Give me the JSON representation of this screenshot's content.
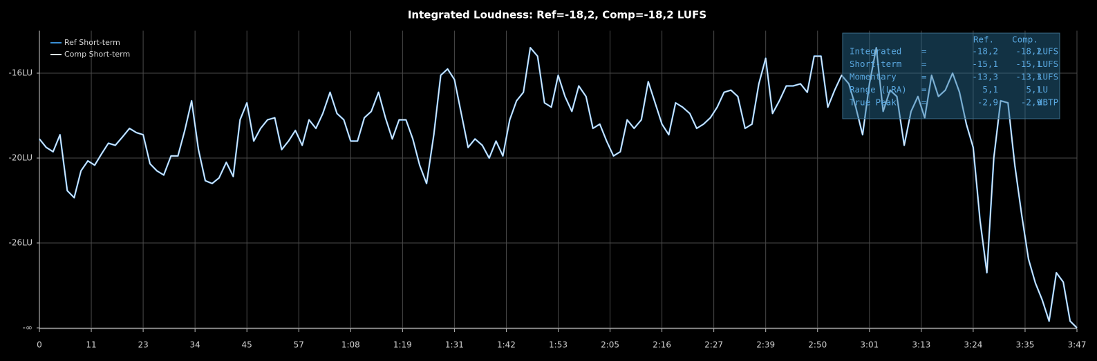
{
  "chart_data": {
    "type": "line",
    "title": "Integrated Loudness: Ref=-18,2, Comp=-18,2 LUFS",
    "xlim": [
      0,
      227
    ],
    "xticks": [
      {
        "value": 0,
        "label": "0"
      },
      {
        "value": 11.35,
        "label": "11"
      },
      {
        "value": 22.7,
        "label": "23"
      },
      {
        "value": 34.05,
        "label": "34"
      },
      {
        "value": 45.4,
        "label": "45"
      },
      {
        "value": 56.75,
        "label": "57"
      },
      {
        "value": 68.1,
        "label": "1:08"
      },
      {
        "value": 79.45,
        "label": "1:19"
      },
      {
        "value": 90.8,
        "label": "1:31"
      },
      {
        "value": 102.15,
        "label": "1:42"
      },
      {
        "value": 113.5,
        "label": "1:53"
      },
      {
        "value": 124.85,
        "label": "2:05"
      },
      {
        "value": 136.2,
        "label": "2:16"
      },
      {
        "value": 147.55,
        "label": "2:27"
      },
      {
        "value": 158.9,
        "label": "2:39"
      },
      {
        "value": 170.25,
        "label": "2:50"
      },
      {
        "value": 181.6,
        "label": "3:01"
      },
      {
        "value": 192.95,
        "label": "3:13"
      },
      {
        "value": 204.3,
        "label": "3:24"
      },
      {
        "value": 215.65,
        "label": "3:35"
      },
      {
        "value": 227,
        "label": "3:47"
      }
    ],
    "ylim": [
      -36,
      -14
    ],
    "yticks": [
      {
        "value": -16,
        "label": "-16LU"
      },
      {
        "value": -20,
        "label": "-20LU"
      },
      {
        "value": -26,
        "label": "-26LU"
      },
      {
        "value": -36,
        "label": "-∞"
      }
    ],
    "grid": true,
    "legend": "top-left",
    "x": [
      0,
      1.5,
      3.0,
      4.5,
      6.1,
      7.6,
      9.1,
      10.6,
      12.1,
      13.6,
      15.1,
      16.6,
      18.2,
      19.7,
      21.2,
      22.7,
      24.2,
      25.7,
      27.2,
      28.8,
      30.3,
      31.8,
      33.3,
      34.8,
      36.3,
      37.8,
      39.3,
      40.9,
      42.4,
      43.9,
      45.4,
      46.9,
      48.4,
      49.9,
      51.5,
      53.0,
      54.5,
      56.0,
      57.5,
      59.0,
      60.5,
      62.0,
      63.6,
      65.1,
      66.6,
      68.1,
      69.6,
      71.1,
      72.6,
      74.2,
      75.7,
      77.2,
      78.7,
      80.2,
      81.7,
      83.2,
      84.7,
      86.3,
      87.8,
      89.3,
      90.8,
      92.3,
      93.8,
      95.3,
      96.9,
      98.4,
      99.9,
      101.4,
      102.9,
      104.4,
      105.9,
      107.4,
      109.0,
      110.5,
      112.0,
      113.5,
      115.0,
      116.5,
      118.0,
      119.6,
      121.1,
      122.6,
      124.1,
      125.6,
      127.1,
      128.6,
      130.1,
      131.7,
      133.2,
      134.7,
      136.2,
      137.7,
      139.2,
      140.7,
      142.3,
      143.8,
      145.3,
      146.8,
      148.3,
      149.8,
      151.3,
      152.8,
      154.4,
      155.9,
      157.4,
      158.9,
      160.4,
      161.9,
      163.4,
      164.9,
      166.5,
      168.0,
      169.5,
      171.0,
      172.5,
      174.0,
      175.5,
      177.1,
      178.6,
      180.1,
      181.6,
      183.1,
      184.6,
      186.1,
      187.6,
      189.2,
      190.7,
      192.2,
      193.7,
      195.2,
      196.7,
      198.2,
      199.8,
      201.3,
      202.8,
      204.3,
      205.8,
      207.3,
      208.8,
      210.3,
      211.9,
      213.4,
      214.9,
      216.4,
      217.9,
      219.4,
      220.9,
      222.5,
      224.0,
      225.5,
      227.0
    ],
    "series": [
      {
        "name": "Ref Short-term",
        "color": "#3a8fd6",
        "values": [
          -19.1,
          -19.5,
          -19.7,
          -18.9,
          -22.3,
          -22.8,
          -20.9,
          -20.2,
          -20.5,
          -19.8,
          -19.3,
          -19.4,
          -19.0,
          -18.6,
          -18.8,
          -18.9,
          -20.4,
          -20.9,
          -21.2,
          -19.9,
          -19.9,
          -18.7,
          -17.3,
          -19.6,
          -21.6,
          -21.8,
          -21.4,
          -20.3,
          -21.3,
          -18.2,
          -17.4,
          -19.2,
          -18.6,
          -18.2,
          -18.1,
          -19.6,
          -19.2,
          -18.7,
          -19.4,
          -18.2,
          -18.6,
          -17.9,
          -16.9,
          -17.9,
          -18.2,
          -19.2,
          -19.2,
          -18.1,
          -17.8,
          -16.9,
          -18.1,
          -19.1,
          -18.2,
          -18.2,
          -19.1,
          -20.5,
          -21.8,
          -18.9,
          -16.1,
          -15.8,
          -16.3,
          -17.9,
          -19.5,
          -19.1,
          -19.4,
          -20.0,
          -19.2,
          -19.9,
          -18.2,
          -17.3,
          -16.9,
          -14.8,
          -15.2,
          -17.4,
          -17.6,
          -16.1,
          -17.1,
          -17.8,
          -16.6,
          -17.1,
          -18.6,
          -18.4,
          -19.2,
          -19.9,
          -19.7,
          -18.2,
          -18.6,
          -18.2,
          -16.4,
          -17.4,
          -18.4,
          -18.9,
          -17.4,
          -17.6,
          -17.9,
          -18.6,
          -18.4,
          -18.1,
          -17.6,
          -16.9,
          -16.8,
          -17.1,
          -18.6,
          -18.4,
          -16.5,
          -15.3,
          -17.9,
          -17.3,
          -16.6,
          -16.6,
          -16.5,
          -16.9,
          -15.2,
          -15.2,
          -17.6,
          -16.8,
          -16.1,
          -16.5,
          -17.6,
          -18.9,
          -16.5,
          -14.8,
          -17.8,
          -16.8,
          -17.1,
          -19.4,
          -17.8,
          -17.1,
          -18.1,
          -16.1,
          -17.1,
          -16.8,
          -16.0,
          -16.9,
          -18.4,
          -19.5,
          -24.4,
          -29.5,
          -20.0,
          -17.3,
          -17.4,
          -20.5,
          -24.0,
          -27.9,
          -30.7,
          -32.7,
          -35.2,
          -29.5,
          -30.6,
          -35.2,
          -36
        ]
      },
      {
        "name": "Comp Short-term",
        "color": "#dce9f6",
        "values": [
          -19.1,
          -19.5,
          -19.7,
          -18.9,
          -22.3,
          -22.8,
          -20.9,
          -20.2,
          -20.5,
          -19.8,
          -19.3,
          -19.4,
          -19.0,
          -18.6,
          -18.8,
          -18.9,
          -20.4,
          -20.9,
          -21.2,
          -19.9,
          -19.9,
          -18.7,
          -17.3,
          -19.6,
          -21.6,
          -21.8,
          -21.4,
          -20.3,
          -21.3,
          -18.2,
          -17.4,
          -19.2,
          -18.6,
          -18.2,
          -18.1,
          -19.6,
          -19.2,
          -18.7,
          -19.4,
          -18.2,
          -18.6,
          -17.9,
          -16.9,
          -17.9,
          -18.2,
          -19.2,
          -19.2,
          -18.1,
          -17.8,
          -16.9,
          -18.1,
          -19.1,
          -18.2,
          -18.2,
          -19.1,
          -20.5,
          -21.8,
          -18.9,
          -16.1,
          -15.8,
          -16.3,
          -17.9,
          -19.5,
          -19.1,
          -19.4,
          -20.0,
          -19.2,
          -19.9,
          -18.2,
          -17.3,
          -16.9,
          -14.8,
          -15.2,
          -17.4,
          -17.6,
          -16.1,
          -17.1,
          -17.8,
          -16.6,
          -17.1,
          -18.6,
          -18.4,
          -19.2,
          -19.9,
          -19.7,
          -18.2,
          -18.6,
          -18.2,
          -16.4,
          -17.4,
          -18.4,
          -18.9,
          -17.4,
          -17.6,
          -17.9,
          -18.6,
          -18.4,
          -18.1,
          -17.6,
          -16.9,
          -16.8,
          -17.1,
          -18.6,
          -18.4,
          -16.5,
          -15.3,
          -17.9,
          -17.3,
          -16.6,
          -16.6,
          -16.5,
          -16.9,
          -15.2,
          -15.2,
          -17.6,
          -16.8,
          -16.1,
          -16.5,
          -17.6,
          -18.9,
          -16.5,
          -14.8,
          -17.8,
          -16.8,
          -17.1,
          -19.4,
          -17.8,
          -17.1,
          -18.1,
          -16.1,
          -17.1,
          -16.8,
          -16.0,
          -16.9,
          -18.4,
          -19.5,
          -24.4,
          -29.5,
          -20.0,
          -17.3,
          -17.4,
          -20.5,
          -24.0,
          -27.9,
          -30.7,
          -32.7,
          -35.2,
          -29.5,
          -30.6,
          -35.2,
          -36
        ]
      }
    ],
    "stats": {
      "header": [
        "Ref.",
        "Comp."
      ],
      "rows": [
        [
          "Integrated",
          "=",
          "-18,2",
          "-18,2",
          "LUFS"
        ],
        [
          "Short-term",
          "=",
          "-15,1",
          "-15,1",
          "LUFS"
        ],
        [
          "Momentary",
          "=",
          "-13,3",
          "-13,3",
          "LUFS"
        ],
        [
          "Range (LRA)",
          "=",
          "5,1",
          "5,1",
          "LU"
        ],
        [
          "True Peak",
          "=",
          "-2,9",
          "-2,9",
          "dBTP"
        ]
      ]
    }
  }
}
